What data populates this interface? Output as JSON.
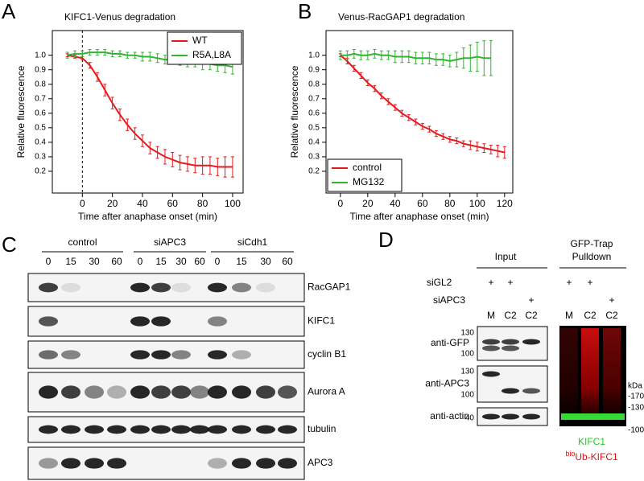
{
  "chart_data": [
    {
      "type": "line",
      "panel": "A",
      "title": "KIFC1-Venus degradation",
      "x_label": "Time after anaphase onset (min)",
      "y_label": "Relative fluorescence",
      "x": [
        -10,
        -5,
        0,
        5,
        10,
        15,
        20,
        25,
        30,
        35,
        40,
        45,
        50,
        55,
        60,
        65,
        70,
        75,
        80,
        85,
        90,
        95,
        100
      ],
      "xlim": [
        -20,
        107
      ],
      "xticks": [
        0,
        20,
        40,
        60,
        80,
        100
      ],
      "ylim": [
        0.05,
        1.17
      ],
      "yticks": [
        {
          "value": 1,
          "label": "1.0"
        },
        0.9,
        0.8,
        0.7,
        0.6,
        0.5,
        0.4,
        0.3,
        0.2
      ],
      "vline": 0,
      "legend": "upper right",
      "series": [
        {
          "name": "WT",
          "color": "#e41a1c",
          "values": [
            1.0,
            0.99,
            0.98,
            0.93,
            0.85,
            0.76,
            0.67,
            0.59,
            0.52,
            0.46,
            0.41,
            0.36,
            0.33,
            0.3,
            0.28,
            0.26,
            0.25,
            0.24,
            0.24,
            0.24,
            0.23,
            0.23,
            0.23
          ],
          "errors": [
            0.01,
            0.01,
            0.01,
            0.02,
            0.03,
            0.04,
            0.04,
            0.04,
            0.04,
            0.04,
            0.04,
            0.04,
            0.04,
            0.05,
            0.05,
            0.05,
            0.05,
            0.05,
            0.06,
            0.06,
            0.06,
            0.07,
            0.07
          ]
        },
        {
          "name": "R5A,L8A",
          "color": "#33b333",
          "values": [
            1.0,
            1.01,
            1.01,
            1.02,
            1.02,
            1.02,
            1.01,
            1.01,
            1.0,
            1.0,
            0.99,
            0.99,
            0.98,
            0.97,
            0.97,
            0.96,
            0.95,
            0.95,
            0.94,
            0.94,
            0.93,
            0.93,
            0.92
          ],
          "errors": [
            0.02,
            0.02,
            0.02,
            0.02,
            0.02,
            0.02,
            0.02,
            0.02,
            0.02,
            0.02,
            0.03,
            0.03,
            0.03,
            0.03,
            0.03,
            0.03,
            0.03,
            0.03,
            0.04,
            0.04,
            0.04,
            0.05,
            0.05
          ]
        }
      ]
    },
    {
      "type": "line",
      "panel": "B",
      "title": "Venus-RacGAP1 degradation",
      "x_label": "Time after anaphase onset (min)",
      "y_label": "Relative fluorescence",
      "x": [
        0,
        5,
        10,
        15,
        20,
        25,
        30,
        35,
        40,
        45,
        50,
        55,
        60,
        65,
        70,
        75,
        80,
        85,
        90,
        95,
        100,
        105,
        110,
        115,
        120
      ],
      "xlim": [
        -10.5,
        126
      ],
      "xticks": [
        0,
        20,
        40,
        60,
        80,
        100,
        120
      ],
      "ylim": [
        0.05,
        1.17
      ],
      "yticks": [
        {
          "value": 1,
          "label": "1.0"
        },
        0.9,
        0.8,
        0.7,
        0.6,
        0.5,
        0.4,
        0.3,
        0.2
      ],
      "legend": "lower left",
      "series": [
        {
          "name": "control",
          "color": "#e41a1c",
          "values": [
            1.0,
            0.96,
            0.91,
            0.86,
            0.81,
            0.77,
            0.72,
            0.68,
            0.64,
            0.6,
            0.57,
            0.54,
            0.51,
            0.49,
            0.46,
            0.44,
            0.42,
            0.41,
            0.39,
            0.38,
            0.37,
            0.36,
            0.35,
            0.34,
            0.33
          ],
          "errors": [
            0.01,
            0.02,
            0.02,
            0.02,
            0.02,
            0.02,
            0.02,
            0.02,
            0.02,
            0.02,
            0.02,
            0.02,
            0.02,
            0.02,
            0.02,
            0.02,
            0.02,
            0.02,
            0.02,
            0.03,
            0.03,
            0.03,
            0.03,
            0.04,
            0.04
          ]
        },
        {
          "name": "MG132",
          "color": "#33b333",
          "values": [
            1.0,
            1.0,
            1.01,
            1.0,
            1.0,
            1.01,
            1.0,
            1.0,
            0.99,
            0.99,
            0.99,
            0.98,
            0.98,
            0.98,
            0.97,
            0.97,
            0.96,
            0.97,
            0.98,
            0.98,
            0.99,
            0.98,
            0.98,
            null,
            null
          ],
          "errors": [
            0.03,
            0.03,
            0.03,
            0.03,
            0.03,
            0.03,
            0.03,
            0.03,
            0.04,
            0.04,
            0.04,
            0.04,
            0.04,
            0.04,
            0.04,
            0.04,
            0.04,
            0.05,
            0.07,
            0.09,
            0.1,
            0.12,
            0.12,
            null,
            null
          ]
        }
      ]
    }
  ],
  "panel_c": {
    "label": "C",
    "groups": [
      {
        "name": "control",
        "lanes": [
          "0",
          "15",
          "30",
          "60"
        ]
      },
      {
        "name": "siAPC3",
        "lanes": [
          "0",
          "15",
          "30",
          "60"
        ]
      },
      {
        "name": "siCdh1",
        "lanes": [
          "0",
          "15",
          "30",
          "60"
        ]
      }
    ],
    "rows": [
      "RacGAP1",
      "KIFC1",
      "cyclin B1",
      "Aurora A",
      "tubulin",
      "APC3"
    ]
  },
  "panel_d": {
    "label": "D",
    "input": "Input",
    "pulldown": [
      "GFP-Trap",
      "Pulldown"
    ],
    "treatments": [
      {
        "name": "siGL2",
        "input": [
          "+",
          "+",
          null
        ],
        "pulldown": [
          "+",
          "+",
          null
        ]
      },
      {
        "name": "siAPC3",
        "input": [
          null,
          null,
          "+"
        ],
        "pulldown": [
          null,
          null,
          "+"
        ]
      }
    ],
    "lanes_input": [
      "M",
      "C2",
      "C2"
    ],
    "lanes_pulldown": [
      "M",
      "C2",
      "C2"
    ],
    "blots": [
      {
        "name": "anti-GFP",
        "markers": [
          "130",
          "100"
        ]
      },
      {
        "name": "anti-APC3",
        "markers": [
          "130",
          "100"
        ]
      },
      {
        "name": "anti-actin",
        "markers": [
          "40"
        ]
      }
    ],
    "pulldown_markers": [
      "kDa",
      "-170",
      "-130",
      "-100"
    ],
    "key": {
      "green": "KIFC1",
      "red_sup": "bio",
      "red": "Ub-KIFC1"
    }
  }
}
